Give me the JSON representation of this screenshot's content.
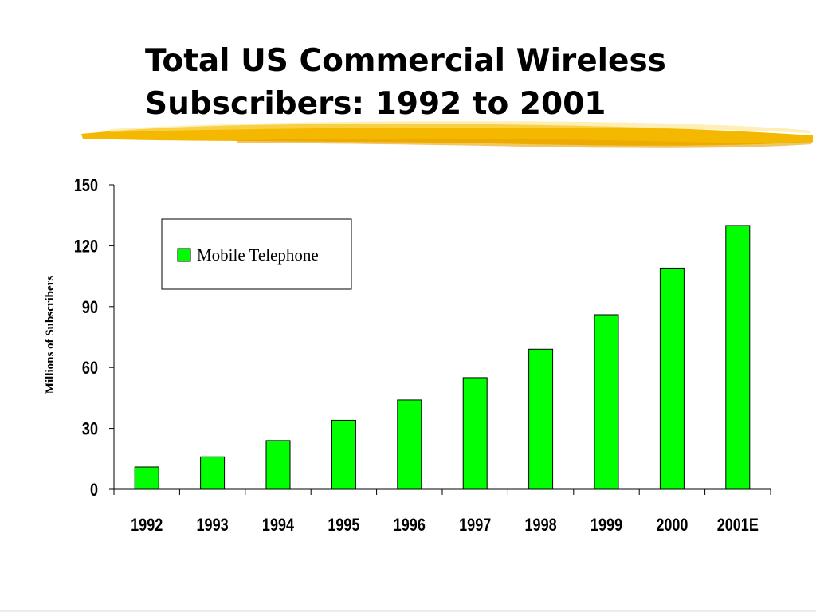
{
  "slide": {
    "title_line1": "Total US Commercial Wireless",
    "title_line2": "Subscribers: 1992 to 2001",
    "accent_color": "#F5B800"
  },
  "chart_data": {
    "type": "bar",
    "title": "",
    "xlabel": "",
    "ylabel": "Millions of Subscribers",
    "categories": [
      "1992",
      "1993",
      "1994",
      "1995",
      "1996",
      "1997",
      "1998",
      "1999",
      "2000",
      "2001E"
    ],
    "series": [
      {
        "name": "Mobile Telephone",
        "color": "#00FF00",
        "values": [
          11,
          16,
          24,
          34,
          44,
          55,
          69,
          86,
          109,
          130
        ]
      }
    ],
    "ylim": [
      0,
      150
    ],
    "yticks": [
      0,
      30,
      60,
      90,
      120,
      150
    ],
    "grid": false,
    "legend_position": "top-left"
  }
}
